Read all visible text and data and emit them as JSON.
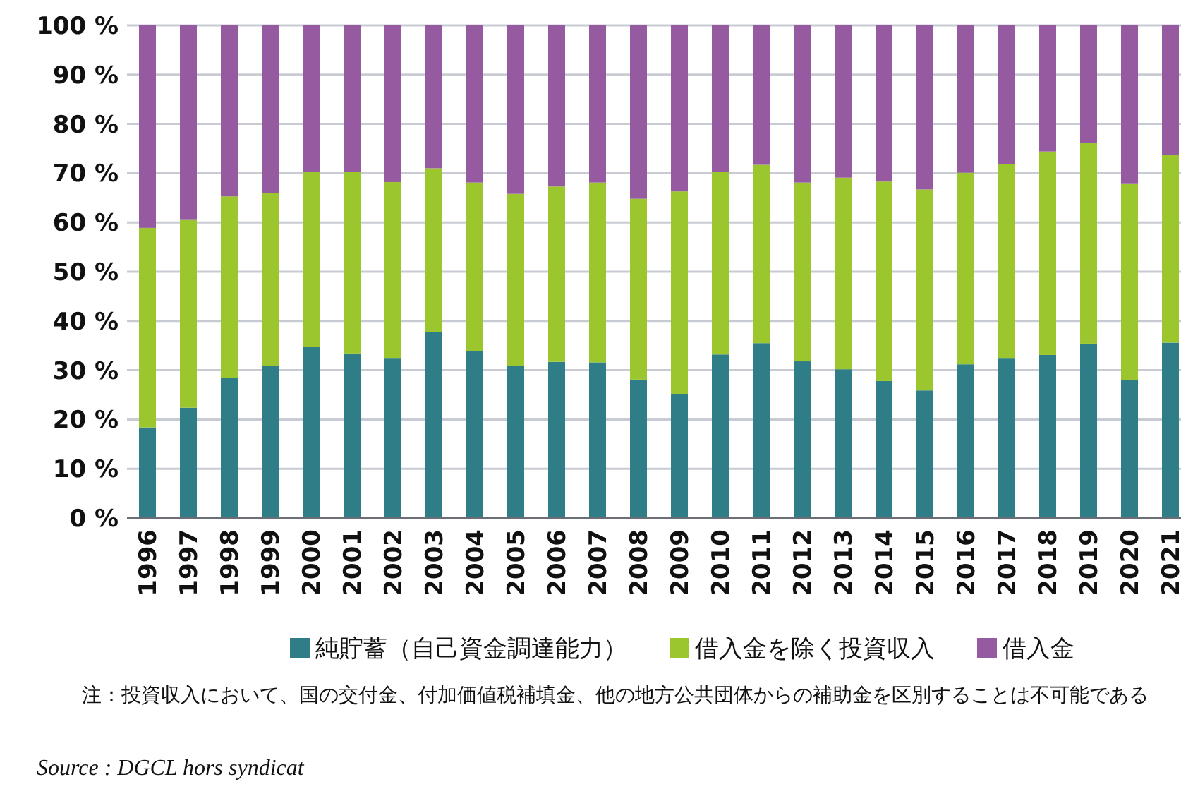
{
  "chart_data": {
    "type": "bar",
    "stacked": true,
    "categories": [
      "1996",
      "1997",
      "1998",
      "1999",
      "2000",
      "2001",
      "2002",
      "2003",
      "2004",
      "2005",
      "2006",
      "2007",
      "2008",
      "2009",
      "2010",
      "2011",
      "2012",
      "2013",
      "2014",
      "2015",
      "2016",
      "2017",
      "2018",
      "2019",
      "2020",
      "2021"
    ],
    "series": [
      {
        "name": "純貯蓄（自己資金調達能力）",
        "color": "#2e7d87",
        "values": [
          18.4,
          22.4,
          28.4,
          30.9,
          34.7,
          33.4,
          32.5,
          37.8,
          33.9,
          30.9,
          31.7,
          31.6,
          28.1,
          25.1,
          33.2,
          35.5,
          31.8,
          30.2,
          27.8,
          25.9,
          31.2,
          32.5,
          33.1,
          35.4,
          28.0,
          35.6
        ]
      },
      {
        "name": "借入金を除く投資収入",
        "color": "#9bc62e",
        "values": [
          40.5,
          38.1,
          36.9,
          35.1,
          35.5,
          36.8,
          35.7,
          33.2,
          34.2,
          34.9,
          35.6,
          36.5,
          36.7,
          41.2,
          37.0,
          36.2,
          36.3,
          38.9,
          40.5,
          40.8,
          38.9,
          39.4,
          41.3,
          40.7,
          39.8,
          38.1
        ]
      },
      {
        "name": "借入金",
        "color": "#965aa0",
        "values": [
          41.1,
          39.5,
          34.7,
          34.0,
          29.8,
          29.8,
          31.8,
          29.0,
          31.9,
          34.2,
          32.7,
          31.9,
          35.2,
          33.7,
          29.8,
          28.3,
          31.9,
          30.9,
          31.7,
          33.3,
          29.9,
          28.1,
          25.6,
          23.9,
          32.2,
          26.3
        ]
      }
    ],
    "ylim": [
      0,
      100
    ],
    "yticks": [
      {
        "value": 0,
        "label": "0 %"
      },
      {
        "value": 10,
        "label": "10 %"
      },
      {
        "value": 20,
        "label": "20 %"
      },
      {
        "value": 30,
        "label": "30 %"
      },
      {
        "value": 40,
        "label": "40 %"
      },
      {
        "value": 50,
        "label": "50 %"
      },
      {
        "value": 60,
        "label": "60 %"
      },
      {
        "value": 70,
        "label": "70 %"
      },
      {
        "value": 80,
        "label": "80 %"
      },
      {
        "value": 90,
        "label": "90 %"
      },
      {
        "value": 100,
        "label": "100 %"
      }
    ],
    "grid": "y",
    "legend": "bottom",
    "annotations": [
      "注：投資収入において、国の交付金、付加価値税補填金、他の地方公共団体からの補助金を区別することは不可能である",
      "Source : DGCL hors syndicat"
    ]
  }
}
